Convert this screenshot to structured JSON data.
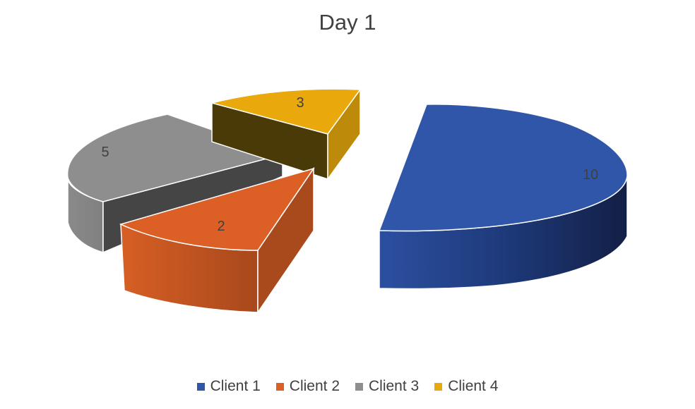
{
  "chart_data": {
    "type": "pie",
    "style": "3d-exploded",
    "title": "Day 1",
    "categories": [
      "Client 1",
      "Client 2",
      "Client 3",
      "Client 4"
    ],
    "values": [
      10,
      2,
      5,
      3
    ],
    "colors": [
      "#3056A9",
      "#DC6025",
      "#8E8E8E",
      "#E9A90C"
    ],
    "legend_placement": "bottom"
  }
}
